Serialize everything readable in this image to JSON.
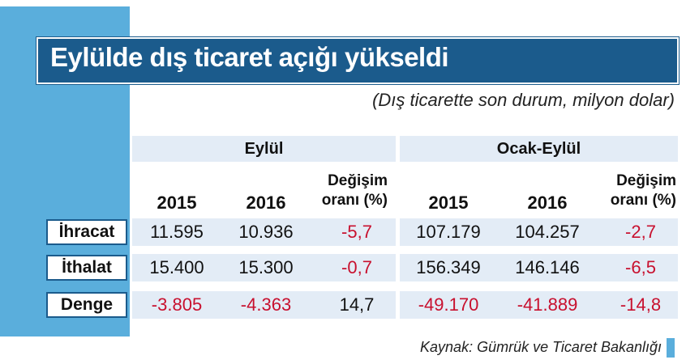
{
  "header": {
    "title": "Eylülde dış ticaret açığı yükseldi",
    "subtitle": "(Dış ticarette son durum, milyon dolar)"
  },
  "table": {
    "groups": [
      "Eylül",
      "Ocak-Eylül"
    ],
    "columns": [
      "2015",
      "2016",
      "Değişim oranı (%)",
      "2015",
      "2016",
      "Değişim oranı (%)"
    ],
    "rows": [
      {
        "label": "İhracat",
        "cells": [
          "11.595",
          "10.936",
          "-5,7",
          "107.179",
          "104.257",
          "-2,7"
        ]
      },
      {
        "label": "İthalat",
        "cells": [
          "15.400",
          "15.300",
          "-0,7",
          "156.349",
          "146.146",
          "-6,5"
        ]
      },
      {
        "label": "Denge",
        "cells": [
          "-3.805",
          "-4.363",
          "14,7",
          "-49.170",
          "-41.889",
          "-14,8"
        ]
      }
    ]
  },
  "footer": {
    "source": "Kaynak: Gümrük ve Ticaret Bakanlığı"
  }
}
